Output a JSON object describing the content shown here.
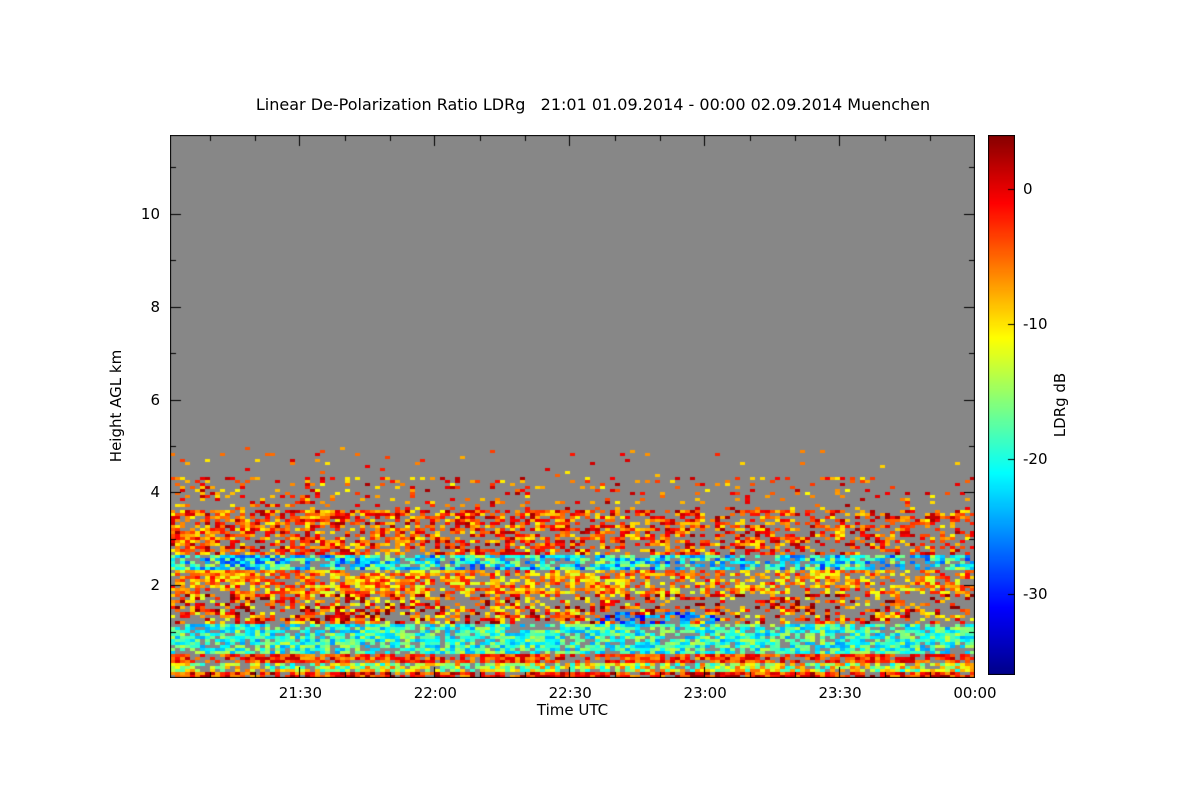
{
  "title": "Linear De-Polarization Ratio LDRg   21:01 01.09.2014 - 00:00 02.09.2014 Muenchen",
  "chart_data": {
    "type": "heatmap",
    "title": "Linear De-Polarization Ratio LDRg   21:01 01.09.2014 - 00:00 02.09.2014 Muenchen",
    "station": "Muenchen",
    "time_span": "21:01 01.09.2014 - 00:00 02.09.2014",
    "xlabel": "Time UTC",
    "ylabel": "Height AGL km",
    "x_start": "21:01",
    "x_end": "00:00",
    "x_ticks": [
      "21:30",
      "22:00",
      "22:30",
      "23:00",
      "23:30",
      "00:00"
    ],
    "x_minor_step_minutes": 10,
    "y_range": [
      0,
      11.7
    ],
    "y_ticks": [
      2,
      4,
      6,
      8,
      10
    ],
    "y_minor_ticks": [
      1,
      3,
      5,
      7,
      9,
      11
    ],
    "grid": false,
    "no_data_color": "#878787",
    "colorbar": {
      "label": "LDRg dB",
      "ticks": [
        0,
        -10,
        -20,
        -30
      ],
      "value_range": [
        -36,
        4
      ],
      "colormap": [
        {
          "t": 0.0,
          "color": "#000087"
        },
        {
          "t": 0.125,
          "color": "#0000ff"
        },
        {
          "t": 0.375,
          "color": "#00ffff"
        },
        {
          "t": 0.625,
          "color": "#ffff00"
        },
        {
          "t": 0.875,
          "color": "#ff0000"
        },
        {
          "t": 1.0,
          "color": "#870000"
        }
      ]
    },
    "layers": [
      {
        "name": "surface-red-line",
        "h": [
          0.0,
          0.13
        ],
        "coverage": [
          1.0,
          1.0
        ],
        "value_mean": -2,
        "value_spread": 6
      },
      {
        "name": "near-surface-green-yellow",
        "h": [
          0.13,
          0.35
        ],
        "coverage": [
          0.95,
          0.95
        ],
        "value_mean": -13,
        "value_spread": 8
      },
      {
        "name": "low-red-line",
        "h": [
          0.35,
          0.5
        ],
        "coverage": [
          0.95,
          0.9
        ],
        "value_mean": -3,
        "value_spread": 5
      },
      {
        "name": "low-cyan-band",
        "h": [
          0.5,
          1.15
        ],
        "coverage": [
          0.95,
          0.9
        ],
        "value_mean": -19,
        "value_spread": 6
      },
      {
        "name": "lower-mixed-speckle",
        "h": [
          1.15,
          1.8
        ],
        "coverage": [
          0.72,
          0.38
        ],
        "value_mean": -4,
        "value_spread": 9
      },
      {
        "name": "yellow-orange-band",
        "h": [
          1.8,
          2.3
        ],
        "coverage": [
          0.9,
          0.7
        ],
        "value_mean": -7,
        "value_spread": 6
      },
      {
        "name": "mid-cyan-blue-band",
        "h": [
          2.3,
          2.65
        ],
        "coverage": [
          0.9,
          0.85
        ],
        "value_mean": -21,
        "value_spread": 8
      },
      {
        "name": "main-orange-red-band",
        "h": [
          2.65,
          3.6
        ],
        "coverage": [
          0.85,
          0.5
        ],
        "value_mean": -4,
        "value_spread": 7
      },
      {
        "name": "upper-scattered",
        "h": [
          3.6,
          4.3
        ],
        "coverage": [
          0.3,
          0.1
        ],
        "value_mean": -4,
        "value_spread": 7
      },
      {
        "name": "sparse-specks",
        "h": [
          4.3,
          5.0
        ],
        "coverage": [
          0.05,
          0.02
        ],
        "value_mean": -5,
        "value_spread": 6
      },
      {
        "name": "blue-patch",
        "h": [
          1.15,
          1.45
        ],
        "x": [
          0.52,
          0.68
        ],
        "coverage": [
          0.45,
          0.45
        ],
        "value_mean": -27,
        "value_spread": 5
      }
    ]
  }
}
